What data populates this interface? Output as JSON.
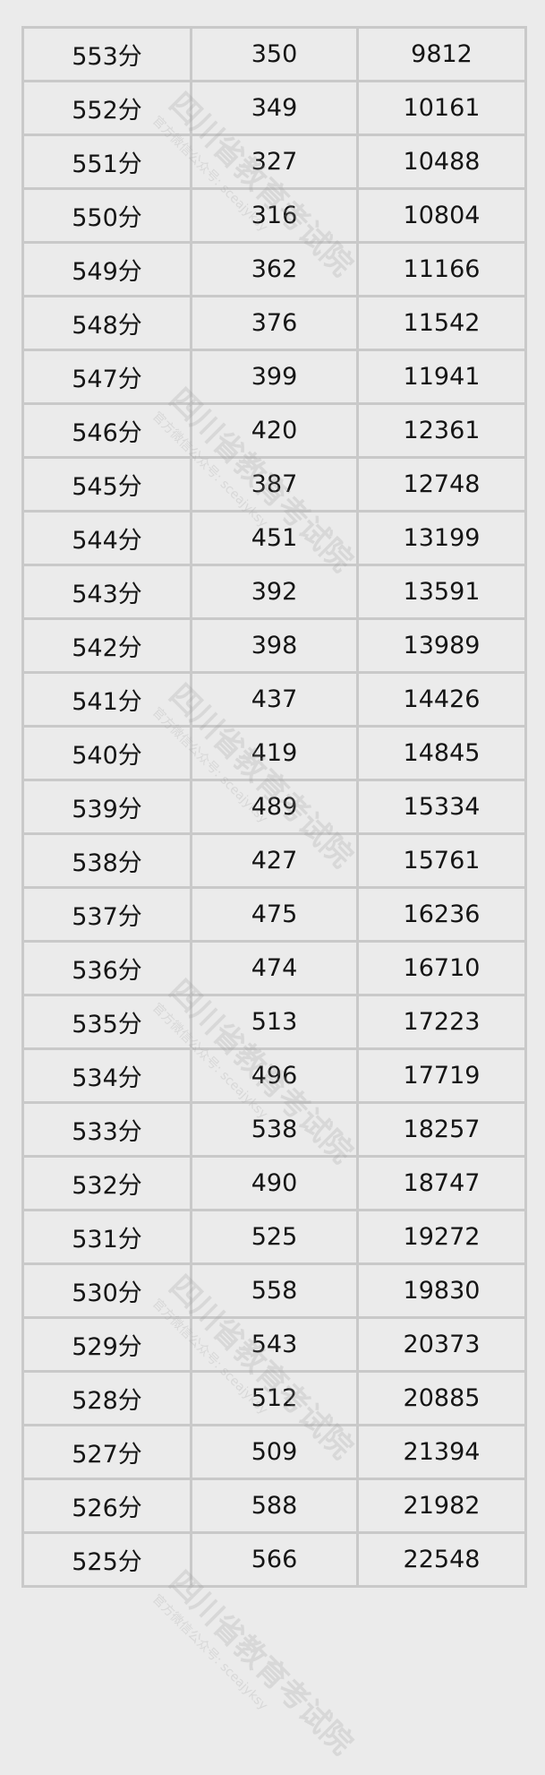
{
  "watermark": {
    "org": "四川省教育考试院",
    "sub": "官方微信公众号: sceajyksy"
  },
  "rows": [
    [
      "553分",
      "350",
      "9812"
    ],
    [
      "552分",
      "349",
      "10161"
    ],
    [
      "551分",
      "327",
      "10488"
    ],
    [
      "550分",
      "316",
      "10804"
    ],
    [
      "549分",
      "362",
      "11166"
    ],
    [
      "548分",
      "376",
      "11542"
    ],
    [
      "547分",
      "399",
      "11941"
    ],
    [
      "546分",
      "420",
      "12361"
    ],
    [
      "545分",
      "387",
      "12748"
    ],
    [
      "544分",
      "451",
      "13199"
    ],
    [
      "543分",
      "392",
      "13591"
    ],
    [
      "542分",
      "398",
      "13989"
    ],
    [
      "541分",
      "437",
      "14426"
    ],
    [
      "540分",
      "419",
      "14845"
    ],
    [
      "539分",
      "489",
      "15334"
    ],
    [
      "538分",
      "427",
      "15761"
    ],
    [
      "537分",
      "475",
      "16236"
    ],
    [
      "536分",
      "474",
      "16710"
    ],
    [
      "535分",
      "513",
      "17223"
    ],
    [
      "534分",
      "496",
      "17719"
    ],
    [
      "533分",
      "538",
      "18257"
    ],
    [
      "532分",
      "490",
      "18747"
    ],
    [
      "531分",
      "525",
      "19272"
    ],
    [
      "530分",
      "558",
      "19830"
    ],
    [
      "529分",
      "543",
      "20373"
    ],
    [
      "528分",
      "512",
      "20885"
    ],
    [
      "527分",
      "509",
      "21394"
    ],
    [
      "526分",
      "588",
      "21982"
    ],
    [
      "525分",
      "566",
      "22548"
    ]
  ]
}
